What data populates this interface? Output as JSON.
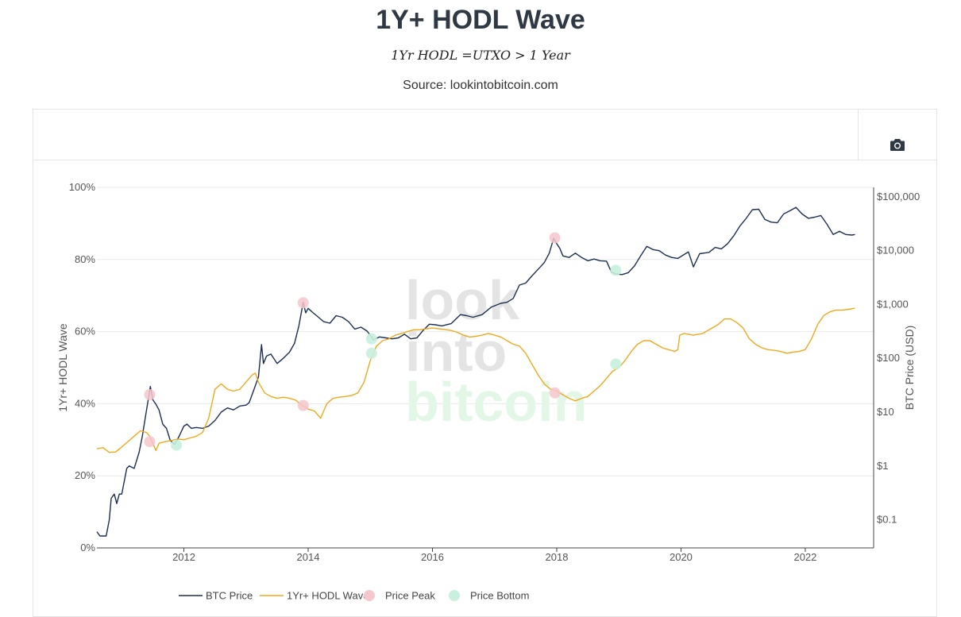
{
  "header": {
    "title": "1Y+ HODL Wave",
    "formula": "1Yr HODL =UTXO > 1 Year",
    "source": "Source: lookintobitcoin.com"
  },
  "toolbar": {
    "camera_icon": "camera-icon"
  },
  "watermark": {
    "line1": "look",
    "line2": "into",
    "line3": "bitcoin"
  },
  "colors": {
    "btc_price": "#1c2f52",
    "hodl_wave": "#f0a81e",
    "price_peak": "#f5c6cb",
    "price_bottom": "#c8f0de",
    "grid": "#e9e9e9",
    "axis_text": "#555555"
  },
  "chart_data": {
    "type": "line",
    "title": "1Y+ HODL Wave",
    "ylabel_left": "1Yr+ HODL Wave",
    "ylabel_right": "BTC Price (USD)",
    "xlim": [
      2010.6,
      2023.1
    ],
    "ylim_left": [
      0,
      100
    ],
    "ylim_right_log": [
      0.03,
      150000
    ],
    "x_ticks": [
      2012,
      2014,
      2016,
      2018,
      2020,
      2022
    ],
    "x_tick_labels": [
      "2012",
      "2014",
      "2016",
      "2018",
      "2020",
      "2022"
    ],
    "y_left_ticks": [
      0,
      20,
      40,
      60,
      80,
      100
    ],
    "y_left_tick_labels": [
      "0%",
      "20%",
      "40%",
      "60%",
      "80%",
      "100%"
    ],
    "y_right_ticks": [
      0.1,
      1,
      10,
      100,
      1000,
      10000,
      100000
    ],
    "y_right_tick_labels": [
      "$0.1",
      "$1",
      "$10",
      "$100",
      "$1,000",
      "$10,000",
      "$100,000"
    ],
    "legend": [
      {
        "name": "BTC Price",
        "kind": "line"
      },
      {
        "name": "1Yr+ HODL Wave",
        "kind": "line"
      },
      {
        "name": "Price Peak",
        "kind": "marker"
      },
      {
        "name": "Price Bottom",
        "kind": "marker"
      }
    ],
    "series": [
      {
        "name": "BTC Price",
        "axis": "right",
        "points": [
          [
            2010.6,
            0.06
          ],
          [
            2010.65,
            0.05
          ],
          [
            2010.75,
            0.05
          ],
          [
            2010.8,
            0.1
          ],
          [
            2010.83,
            0.25
          ],
          [
            2010.88,
            0.3
          ],
          [
            2010.92,
            0.2
          ],
          [
            2010.96,
            0.3
          ],
          [
            2011.0,
            0.3
          ],
          [
            2011.08,
            0.9
          ],
          [
            2011.12,
            1.0
          ],
          [
            2011.2,
            0.9
          ],
          [
            2011.28,
            1.8
          ],
          [
            2011.33,
            3.5
          ],
          [
            2011.38,
            8.0
          ],
          [
            2011.43,
            18.0
          ],
          [
            2011.46,
            30.0
          ],
          [
            2011.5,
            17.0
          ],
          [
            2011.55,
            14.0
          ],
          [
            2011.6,
            11.0
          ],
          [
            2011.66,
            6.0
          ],
          [
            2011.72,
            5.0
          ],
          [
            2011.78,
            3.0
          ],
          [
            2011.85,
            2.5
          ],
          [
            2011.92,
            3.5
          ],
          [
            2012.0,
            5.5
          ],
          [
            2012.05,
            6.0
          ],
          [
            2012.12,
            5.0
          ],
          [
            2012.2,
            5.2
          ],
          [
            2012.3,
            5.0
          ],
          [
            2012.4,
            5.5
          ],
          [
            2012.5,
            7.0
          ],
          [
            2012.6,
            10.0
          ],
          [
            2012.7,
            12.0
          ],
          [
            2012.8,
            11.0
          ],
          [
            2012.9,
            13.0
          ],
          [
            2013.0,
            13.5
          ],
          [
            2013.05,
            15.0
          ],
          [
            2013.12,
            25.0
          ],
          [
            2013.2,
            45.0
          ],
          [
            2013.25,
            180.0
          ],
          [
            2013.28,
            80.0
          ],
          [
            2013.33,
            110.0
          ],
          [
            2013.4,
            120.0
          ],
          [
            2013.5,
            80.0
          ],
          [
            2013.6,
            100.0
          ],
          [
            2013.7,
            130.0
          ],
          [
            2013.78,
            190.0
          ],
          [
            2013.85,
            400.0
          ],
          [
            2013.92,
            1100.0
          ],
          [
            2013.96,
            700.0
          ],
          [
            2014.0,
            850.0
          ],
          [
            2014.08,
            700.0
          ],
          [
            2014.15,
            600.0
          ],
          [
            2014.25,
            480.0
          ],
          [
            2014.35,
            450.0
          ],
          [
            2014.45,
            620.0
          ],
          [
            2014.55,
            580.0
          ],
          [
            2014.65,
            480.0
          ],
          [
            2014.75,
            350.0
          ],
          [
            2014.85,
            380.0
          ],
          [
            2014.95,
            320.0
          ],
          [
            2015.05,
            220.0
          ],
          [
            2015.15,
            250.0
          ],
          [
            2015.25,
            240.0
          ],
          [
            2015.35,
            230.0
          ],
          [
            2015.45,
            240.0
          ],
          [
            2015.55,
            280.0
          ],
          [
            2015.65,
            230.0
          ],
          [
            2015.75,
            240.0
          ],
          [
            2015.85,
            330.0
          ],
          [
            2015.95,
            430.0
          ],
          [
            2016.05,
            420.0
          ],
          [
            2016.15,
            400.0
          ],
          [
            2016.3,
            440.0
          ],
          [
            2016.45,
            650.0
          ],
          [
            2016.55,
            620.0
          ],
          [
            2016.65,
            580.0
          ],
          [
            2016.8,
            650.0
          ],
          [
            2016.95,
            900.0
          ],
          [
            2017.1,
            1050.0
          ],
          [
            2017.2,
            1100.0
          ],
          [
            2017.3,
            1300.0
          ],
          [
            2017.4,
            2300.0
          ],
          [
            2017.5,
            2500.0
          ],
          [
            2017.6,
            3400.0
          ],
          [
            2017.7,
            4500.0
          ],
          [
            2017.8,
            6000.0
          ],
          [
            2017.88,
            9000.0
          ],
          [
            2017.95,
            17000.0
          ],
          [
            2018.0,
            13500.0
          ],
          [
            2018.05,
            11000.0
          ],
          [
            2018.1,
            8000.0
          ],
          [
            2018.2,
            7500.0
          ],
          [
            2018.3,
            9000.0
          ],
          [
            2018.4,
            7500.0
          ],
          [
            2018.5,
            6500.0
          ],
          [
            2018.6,
            7000.0
          ],
          [
            2018.7,
            6500.0
          ],
          [
            2018.8,
            6400.0
          ],
          [
            2018.88,
            4000.0
          ],
          [
            2018.95,
            3700.0
          ],
          [
            2019.05,
            3600.0
          ],
          [
            2019.15,
            3900.0
          ],
          [
            2019.25,
            5200.0
          ],
          [
            2019.35,
            8000.0
          ],
          [
            2019.45,
            12000.0
          ],
          [
            2019.55,
            10500.0
          ],
          [
            2019.65,
            10000.0
          ],
          [
            2019.75,
            8300.0
          ],
          [
            2019.85,
            7500.0
          ],
          [
            2019.95,
            7200.0
          ],
          [
            2020.05,
            8500.0
          ],
          [
            2020.12,
            9500.0
          ],
          [
            2020.2,
            5000.0
          ],
          [
            2020.3,
            8800.0
          ],
          [
            2020.45,
            9300.0
          ],
          [
            2020.55,
            11500.0
          ],
          [
            2020.65,
            10800.0
          ],
          [
            2020.75,
            13500.0
          ],
          [
            2020.85,
            19000.0
          ],
          [
            2020.95,
            29000.0
          ],
          [
            2021.05,
            40000.0
          ],
          [
            2021.15,
            58000.0
          ],
          [
            2021.25,
            59000.0
          ],
          [
            2021.35,
            38000.0
          ],
          [
            2021.45,
            34000.0
          ],
          [
            2021.55,
            33000.0
          ],
          [
            2021.65,
            48000.0
          ],
          [
            2021.75,
            55000.0
          ],
          [
            2021.85,
            64000.0
          ],
          [
            2021.95,
            48000.0
          ],
          [
            2022.05,
            40000.0
          ],
          [
            2022.15,
            42000.0
          ],
          [
            2022.25,
            45000.0
          ],
          [
            2022.35,
            31000.0
          ],
          [
            2022.45,
            20000.0
          ],
          [
            2022.55,
            23000.0
          ],
          [
            2022.65,
            20000.0
          ],
          [
            2022.75,
            19500.0
          ],
          [
            2022.8,
            20000.0
          ]
        ]
      },
      {
        "name": "1Yr+ HODL Wave",
        "axis": "left",
        "points": [
          [
            2010.6,
            27.5
          ],
          [
            2010.7,
            27.8
          ],
          [
            2010.8,
            26.5
          ],
          [
            2010.9,
            26.6
          ],
          [
            2011.0,
            28.0
          ],
          [
            2011.1,
            29.5
          ],
          [
            2011.2,
            31.0
          ],
          [
            2011.3,
            32.5
          ],
          [
            2011.4,
            32.0
          ],
          [
            2011.45,
            31.0
          ],
          [
            2011.5,
            29.0
          ],
          [
            2011.55,
            27.0
          ],
          [
            2011.6,
            29.0
          ],
          [
            2011.7,
            29.5
          ],
          [
            2011.8,
            29.8
          ],
          [
            2011.9,
            30.2
          ],
          [
            2012.0,
            30.0
          ],
          [
            2012.1,
            30.5
          ],
          [
            2012.2,
            31.0
          ],
          [
            2012.3,
            32.0
          ],
          [
            2012.4,
            36.0
          ],
          [
            2012.5,
            44.0
          ],
          [
            2012.6,
            45.5
          ],
          [
            2012.7,
            44.0
          ],
          [
            2012.8,
            43.5
          ],
          [
            2012.9,
            44.0
          ],
          [
            2013.0,
            46.0
          ],
          [
            2013.1,
            48.0
          ],
          [
            2013.15,
            48.5
          ],
          [
            2013.2,
            46.0
          ],
          [
            2013.3,
            43.0
          ],
          [
            2013.4,
            42.0
          ],
          [
            2013.5,
            41.5
          ],
          [
            2013.6,
            41.8
          ],
          [
            2013.7,
            41.5
          ],
          [
            2013.8,
            41.0
          ],
          [
            2013.9,
            39.5
          ],
          [
            2014.0,
            38.5
          ],
          [
            2014.1,
            38.0
          ],
          [
            2014.2,
            36.0
          ],
          [
            2014.3,
            40.0
          ],
          [
            2014.4,
            41.5
          ],
          [
            2014.5,
            41.8
          ],
          [
            2014.6,
            42.0
          ],
          [
            2014.7,
            42.3
          ],
          [
            2014.8,
            43.0
          ],
          [
            2014.9,
            46.0
          ],
          [
            2015.0,
            52.0
          ],
          [
            2015.1,
            56.0
          ],
          [
            2015.2,
            57.5
          ],
          [
            2015.3,
            58.0
          ],
          [
            2015.4,
            59.0
          ],
          [
            2015.5,
            59.5
          ],
          [
            2015.6,
            60.0
          ],
          [
            2015.7,
            60.5
          ],
          [
            2015.8,
            60.5
          ],
          [
            2015.9,
            60.8
          ],
          [
            2016.0,
            61.0
          ],
          [
            2016.1,
            60.8
          ],
          [
            2016.2,
            60.6
          ],
          [
            2016.3,
            60.3
          ],
          [
            2016.4,
            59.8
          ],
          [
            2016.5,
            59.0
          ],
          [
            2016.6,
            58.5
          ],
          [
            2016.7,
            58.7
          ],
          [
            2016.8,
            59.0
          ],
          [
            2016.9,
            59.5
          ],
          [
            2017.0,
            59.0
          ],
          [
            2017.1,
            58.5
          ],
          [
            2017.2,
            57.5
          ],
          [
            2017.3,
            56.5
          ],
          [
            2017.4,
            56.0
          ],
          [
            2017.5,
            54.0
          ],
          [
            2017.6,
            51.0
          ],
          [
            2017.7,
            48.0
          ],
          [
            2017.8,
            45.5
          ],
          [
            2017.9,
            44.0
          ],
          [
            2018.0,
            43.5
          ],
          [
            2018.1,
            42.5
          ],
          [
            2018.2,
            41.5
          ],
          [
            2018.3,
            40.8
          ],
          [
            2018.4,
            41.5
          ],
          [
            2018.5,
            42.0
          ],
          [
            2018.6,
            43.5
          ],
          [
            2018.7,
            45.0
          ],
          [
            2018.8,
            47.0
          ],
          [
            2018.9,
            49.0
          ],
          [
            2019.0,
            50.0
          ],
          [
            2019.1,
            52.0
          ],
          [
            2019.2,
            54.5
          ],
          [
            2019.3,
            56.5
          ],
          [
            2019.4,
            57.5
          ],
          [
            2019.5,
            57.5
          ],
          [
            2019.6,
            56.5
          ],
          [
            2019.7,
            55.5
          ],
          [
            2019.8,
            55.0
          ],
          [
            2019.9,
            54.5
          ],
          [
            2019.95,
            55.0
          ],
          [
            2019.98,
            59.0
          ],
          [
            2020.05,
            59.5
          ],
          [
            2020.2,
            59.0
          ],
          [
            2020.35,
            59.5
          ],
          [
            2020.5,
            61.0
          ],
          [
            2020.6,
            62.0
          ],
          [
            2020.7,
            63.5
          ],
          [
            2020.8,
            63.5
          ],
          [
            2020.9,
            62.5
          ],
          [
            2021.0,
            61.0
          ],
          [
            2021.1,
            58.0
          ],
          [
            2021.2,
            56.5
          ],
          [
            2021.3,
            55.5
          ],
          [
            2021.4,
            55.0
          ],
          [
            2021.5,
            54.8
          ],
          [
            2021.6,
            54.5
          ],
          [
            2021.7,
            54.0
          ],
          [
            2021.8,
            54.3
          ],
          [
            2021.9,
            54.5
          ],
          [
            2022.0,
            55.0
          ],
          [
            2022.1,
            58.0
          ],
          [
            2022.2,
            62.0
          ],
          [
            2022.3,
            64.5
          ],
          [
            2022.4,
            65.5
          ],
          [
            2022.5,
            66.0
          ],
          [
            2022.6,
            66.0
          ],
          [
            2022.7,
            66.2
          ],
          [
            2022.8,
            66.5
          ]
        ]
      }
    ],
    "price_peaks": [
      {
        "x": 2011.45,
        "y_left": 42.5
      },
      {
        "x": 2011.45,
        "y_left": 29.5
      },
      {
        "x": 2013.92,
        "y_left": 68.0
      },
      {
        "x": 2013.92,
        "y_left": 39.5
      },
      {
        "x": 2017.97,
        "y_left": 86.0
      },
      {
        "x": 2017.97,
        "y_left": 43.0
      }
    ],
    "price_bottoms": [
      {
        "x": 2011.88,
        "y_left": 28.5
      },
      {
        "x": 2015.02,
        "y_left": 58.0
      },
      {
        "x": 2015.02,
        "y_left": 54.0
      },
      {
        "x": 2018.95,
        "y_left": 77.0
      },
      {
        "x": 2018.95,
        "y_left": 51.0
      }
    ]
  }
}
